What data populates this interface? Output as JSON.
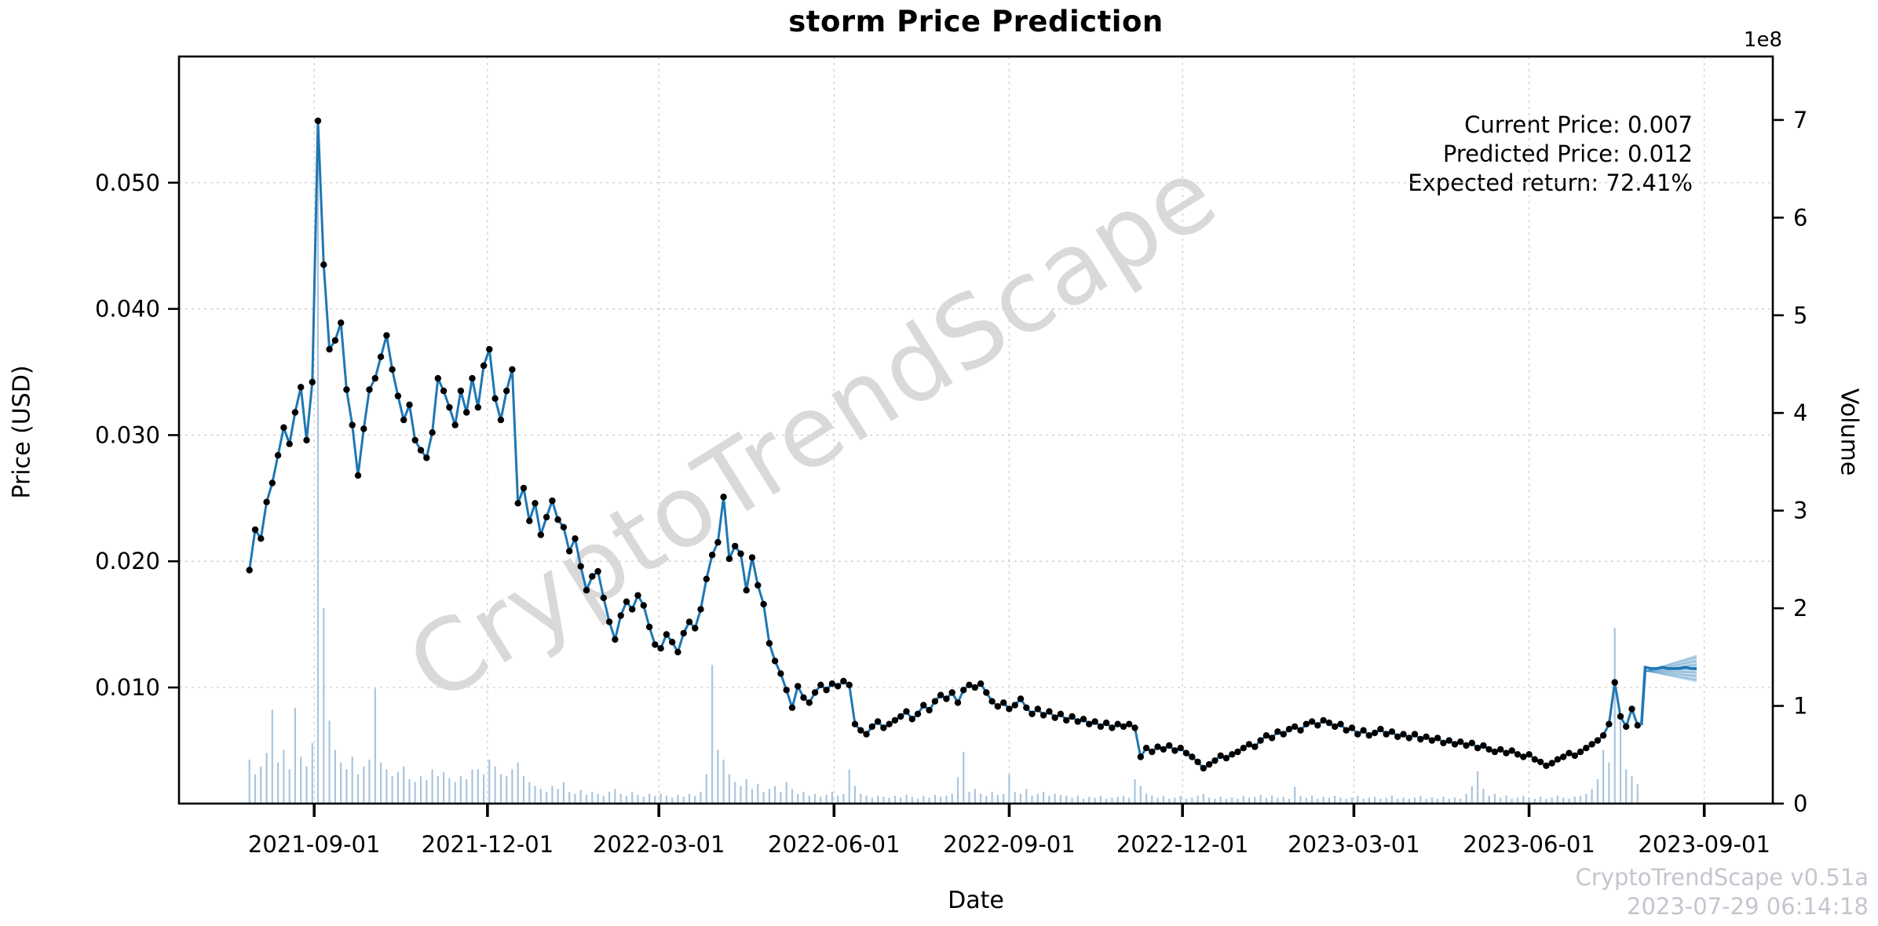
{
  "title": "storm Price Prediction",
  "watermark": {
    "text": "CryptoTrendScape",
    "color": "#d9d9d9",
    "angle_deg": -32
  },
  "annotation": {
    "lines": [
      "Current Price: 0.007",
      "Predicted Price: 0.012",
      "Expected return: 72.41%"
    ]
  },
  "footer": {
    "line1": "CryptoTrendScape v0.51a",
    "line2": "2023-07-29 06:14:18"
  },
  "axis_labels": {
    "x": "Date",
    "y_left": "Price (USD)",
    "y_right": "Volume"
  },
  "volume_offset_label": "1e8",
  "colors": {
    "price_line": "#1f77b4",
    "marker": "#000000",
    "volume_bar": "#a9c5de",
    "forecast_line": "#1f77b4",
    "forecast_band": "rgba(31,119,180,0.28)",
    "grid": "#c9c9c9",
    "spine": "#000000",
    "footer_text": "#c3c6ce"
  },
  "chart_data": {
    "type": "line+bar",
    "title": "storm Price Prediction",
    "xlabel": "Date",
    "ylabel_left": "Price (USD)",
    "ylabel_right": "Volume",
    "grid": true,
    "legend": false,
    "price_ylim": [
      0.0008,
      0.06
    ],
    "volume_ylim_1e8": [
      0,
      7.65
    ],
    "xlim_days_from_start": [
      -37,
      800
    ],
    "x_tick_dates": [
      "2021-09-01",
      "2021-12-01",
      "2022-03-01",
      "2022-06-01",
      "2022-09-01",
      "2022-12-01",
      "2023-03-01",
      "2023-06-01",
      "2023-09-01"
    ],
    "price_ticks": {
      "values": [
        0.01,
        0.02,
        0.03,
        0.04,
        0.05
      ],
      "labels": [
        "0.010",
        "0.020",
        "0.030",
        "0.040",
        "0.050"
      ]
    },
    "volume_ticks_1e8": [
      0,
      1,
      2,
      3,
      4,
      5,
      6,
      7
    ],
    "price_series": {
      "name": "Price (USD)",
      "start_date": "2021-07-29",
      "interval_days": 3,
      "values": [
        0.0193,
        0.0225,
        0.0218,
        0.0247,
        0.0262,
        0.0284,
        0.0306,
        0.0293,
        0.0318,
        0.0338,
        0.0296,
        0.0342,
        0.0549,
        0.0435,
        0.0368,
        0.0375,
        0.0389,
        0.0336,
        0.0308,
        0.0268,
        0.0305,
        0.0336,
        0.0345,
        0.0362,
        0.0379,
        0.0352,
        0.0331,
        0.0312,
        0.0324,
        0.0296,
        0.0288,
        0.0282,
        0.0302,
        0.0345,
        0.0335,
        0.0322,
        0.0308,
        0.0335,
        0.0318,
        0.0345,
        0.0322,
        0.0355,
        0.0368,
        0.0329,
        0.0312,
        0.0335,
        0.0352,
        0.0246,
        0.0258,
        0.0232,
        0.0246,
        0.0221,
        0.0235,
        0.0248,
        0.0233,
        0.0227,
        0.0208,
        0.0218,
        0.0196,
        0.0177,
        0.0188,
        0.0192,
        0.0171,
        0.0152,
        0.0138,
        0.0157,
        0.0168,
        0.0162,
        0.0173,
        0.0165,
        0.0148,
        0.0134,
        0.0131,
        0.0142,
        0.0136,
        0.0128,
        0.0143,
        0.0152,
        0.0147,
        0.0162,
        0.0186,
        0.0205,
        0.0215,
        0.0251,
        0.0202,
        0.0212,
        0.0206,
        0.0177,
        0.0203,
        0.0181,
        0.0166,
        0.0135,
        0.0121,
        0.0111,
        0.0098,
        0.0084,
        0.0101,
        0.0092,
        0.0088,
        0.0096,
        0.0102,
        0.0098,
        0.0103,
        0.0101,
        0.0105,
        0.0102,
        0.0071,
        0.0066,
        0.0063,
        0.0069,
        0.0073,
        0.0068,
        0.0071,
        0.0074,
        0.0077,
        0.0081,
        0.0075,
        0.0079,
        0.0086,
        0.0082,
        0.0089,
        0.0094,
        0.0091,
        0.0096,
        0.0088,
        0.0098,
        0.0102,
        0.01,
        0.0103,
        0.0096,
        0.0089,
        0.0085,
        0.0088,
        0.0083,
        0.0086,
        0.0091,
        0.0084,
        0.0079,
        0.0083,
        0.0078,
        0.0081,
        0.0076,
        0.0079,
        0.0074,
        0.0077,
        0.0073,
        0.0075,
        0.0071,
        0.0073,
        0.0069,
        0.0072,
        0.0068,
        0.0071,
        0.0069,
        0.0071,
        0.0068,
        0.0045,
        0.0052,
        0.0049,
        0.0053,
        0.0051,
        0.0054,
        0.005,
        0.0052,
        0.0048,
        0.0045,
        0.0041,
        0.0036,
        0.0039,
        0.0042,
        0.0046,
        0.0044,
        0.0047,
        0.0049,
        0.0052,
        0.0055,
        0.0053,
        0.0058,
        0.0062,
        0.006,
        0.0065,
        0.0063,
        0.0067,
        0.0069,
        0.0066,
        0.0071,
        0.0073,
        0.007,
        0.0074,
        0.0072,
        0.0069,
        0.0071,
        0.0066,
        0.0068,
        0.0063,
        0.0066,
        0.0062,
        0.0064,
        0.0067,
        0.0063,
        0.0065,
        0.0061,
        0.0063,
        0.006,
        0.0063,
        0.0059,
        0.0061,
        0.0058,
        0.006,
        0.0056,
        0.0058,
        0.0055,
        0.0057,
        0.0054,
        0.0056,
        0.0052,
        0.0054,
        0.0051,
        0.0049,
        0.0051,
        0.0048,
        0.005,
        0.0047,
        0.0045,
        0.0047,
        0.0043,
        0.0041,
        0.0038,
        0.004,
        0.0043,
        0.0045,
        0.0048,
        0.0046,
        0.0049,
        0.0052,
        0.0055,
        0.0058,
        0.0062,
        0.0071,
        0.0104,
        0.0077,
        0.0069,
        0.0083,
        0.007
      ]
    },
    "volume_series": {
      "name": "Volume",
      "unit": "1e8",
      "values": [
        0.45,
        0.3,
        0.38,
        0.52,
        0.96,
        0.42,
        0.55,
        0.35,
        0.98,
        0.48,
        0.38,
        0.62,
        6.9,
        2.0,
        0.85,
        0.55,
        0.42,
        0.35,
        0.48,
        0.3,
        0.38,
        0.45,
        1.18,
        0.42,
        0.35,
        0.28,
        0.32,
        0.38,
        0.25,
        0.22,
        0.28,
        0.24,
        0.35,
        0.28,
        0.32,
        0.26,
        0.22,
        0.28,
        0.25,
        0.35,
        0.35,
        0.3,
        0.45,
        0.38,
        0.3,
        0.28,
        0.35,
        0.42,
        0.28,
        0.22,
        0.18,
        0.15,
        0.12,
        0.18,
        0.15,
        0.22,
        0.12,
        0.1,
        0.14,
        0.09,
        0.12,
        0.1,
        0.08,
        0.12,
        0.15,
        0.1,
        0.08,
        0.12,
        0.09,
        0.07,
        0.1,
        0.08,
        0.1,
        0.08,
        0.06,
        0.09,
        0.07,
        0.1,
        0.08,
        0.12,
        0.3,
        1.42,
        0.55,
        0.45,
        0.3,
        0.22,
        0.18,
        0.25,
        0.15,
        0.2,
        0.12,
        0.15,
        0.18,
        0.12,
        0.22,
        0.15,
        0.1,
        0.12,
        0.08,
        0.1,
        0.07,
        0.09,
        0.12,
        0.08,
        0.1,
        0.35,
        0.18,
        0.1,
        0.08,
        0.06,
        0.08,
        0.07,
        0.06,
        0.08,
        0.06,
        0.09,
        0.07,
        0.05,
        0.08,
        0.06,
        0.09,
        0.07,
        0.08,
        0.1,
        0.27,
        0.53,
        0.12,
        0.15,
        0.1,
        0.08,
        0.12,
        0.09,
        0.1,
        0.3,
        0.12,
        0.1,
        0.15,
        0.08,
        0.1,
        0.12,
        0.08,
        0.1,
        0.09,
        0.08,
        0.06,
        0.08,
        0.05,
        0.07,
        0.06,
        0.08,
        0.05,
        0.06,
        0.07,
        0.08,
        0.06,
        0.25,
        0.18,
        0.1,
        0.08,
        0.06,
        0.08,
        0.05,
        0.06,
        0.08,
        0.05,
        0.06,
        0.08,
        0.1,
        0.06,
        0.05,
        0.07,
        0.05,
        0.06,
        0.05,
        0.08,
        0.06,
        0.07,
        0.09,
        0.06,
        0.08,
        0.06,
        0.07,
        0.05,
        0.17,
        0.08,
        0.06,
        0.08,
        0.05,
        0.07,
        0.06,
        0.08,
        0.06,
        0.05,
        0.06,
        0.08,
        0.05,
        0.06,
        0.07,
        0.05,
        0.06,
        0.08,
        0.05,
        0.06,
        0.05,
        0.06,
        0.08,
        0.05,
        0.06,
        0.05,
        0.07,
        0.05,
        0.06,
        0.05,
        0.1,
        0.18,
        0.33,
        0.15,
        0.08,
        0.1,
        0.06,
        0.08,
        0.05,
        0.06,
        0.08,
        0.06,
        0.05,
        0.07,
        0.05,
        0.06,
        0.08,
        0.06,
        0.05,
        0.07,
        0.08,
        0.1,
        0.15,
        0.25,
        0.55,
        0.42,
        1.8,
        0.85,
        0.35,
        0.28,
        0.2
      ]
    },
    "forecast": {
      "name": "Prediction",
      "current_price": 0.007,
      "predicted_price": 0.012,
      "expected_return_pct": 72.41,
      "line_days_from_start": [
        731,
        733,
        736,
        739,
        742,
        745,
        748,
        751,
        754,
        757,
        760
      ],
      "line_values": [
        0.007,
        0.0116,
        0.0115,
        0.0115,
        0.0116,
        0.0115,
        0.0115,
        0.0115,
        0.0116,
        0.0115,
        0.0115
      ],
      "band_start_day": 733,
      "band_end_day": 760,
      "band_apex_value": 0.0113,
      "band_end_low": 0.0104,
      "band_end_high": 0.0126,
      "fan_end_levels": [
        0.0106,
        0.0109,
        0.0112,
        0.0115,
        0.0118,
        0.0121,
        0.0124
      ]
    }
  }
}
